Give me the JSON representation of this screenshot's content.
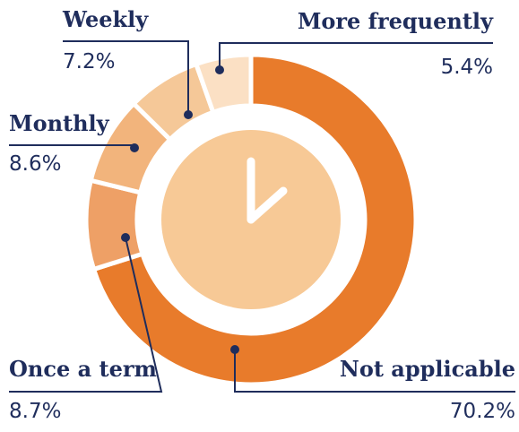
{
  "chart_data": {
    "type": "pie",
    "categories": [
      "Not applicable",
      "Once a term",
      "Monthly",
      "Weekly",
      "More frequently"
    ],
    "values": [
      70.2,
      8.7,
      8.6,
      7.2,
      5.4
    ],
    "value_labels": [
      "70.2%",
      "8.7%",
      "8.6%",
      "7.2%",
      "5.4%"
    ],
    "colors": [
      "#e87b2b",
      "#eea066",
      "#f2b47c",
      "#f5c898",
      "#fbe0c4"
    ]
  }
}
